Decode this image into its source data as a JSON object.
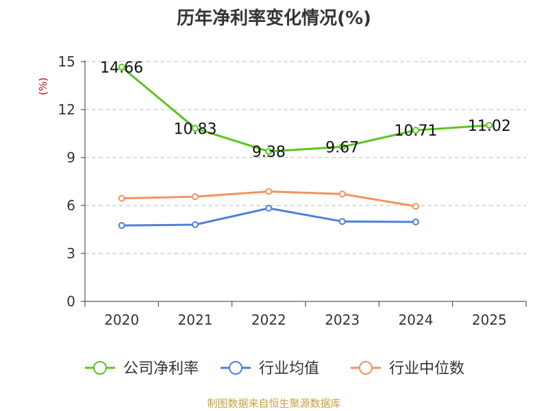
{
  "title": "历年净利率变化情况(%)",
  "source": "制图数据来自恒生聚源数据库",
  "colors": {
    "company": "#5bc41e",
    "avg": "#4e7fdc",
    "median": "#f4915b",
    "ylabel": "#cc0000"
  },
  "chart_data": {
    "type": "line",
    "title": "历年净利率变化情况(%)",
    "ylabel": "(%)",
    "xlabel": "",
    "categories": [
      "2020",
      "2021",
      "2022",
      "2023",
      "2024",
      "2025"
    ],
    "ylim": [
      0,
      15
    ],
    "yticks": [
      0,
      3,
      6,
      9,
      12,
      15
    ],
    "grid": true,
    "legend": "bottom",
    "series": [
      {
        "name": "公司净利率",
        "color": "#5bc41e",
        "values": [
          14.66,
          10.83,
          9.38,
          9.67,
          10.71,
          11.02
        ],
        "labels": [
          "14.66",
          "10.83",
          "9.38",
          "9.67",
          "10.71",
          "11.02"
        ]
      },
      {
        "name": "行业均值",
        "color": "#4e7fdc",
        "values": [
          4.75,
          4.8,
          5.83,
          5.0,
          4.97,
          null
        ]
      },
      {
        "name": "行业中位数",
        "color": "#f4915b",
        "values": [
          6.45,
          6.55,
          6.88,
          6.72,
          5.95,
          null
        ]
      }
    ]
  }
}
